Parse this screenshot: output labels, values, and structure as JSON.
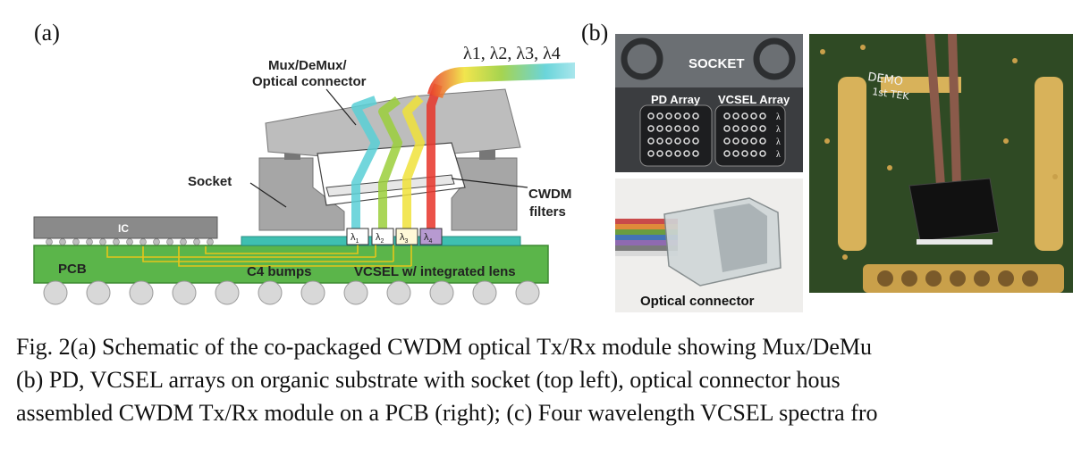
{
  "panels": {
    "a": {
      "label": "(a)",
      "texts": {
        "mux": "Mux/DeMux/",
        "optical_connector": "Optical connector",
        "wavelengths": "λ1, λ2, λ3, λ4",
        "socket": "Socket",
        "cwdm_1": "CWDM",
        "cwdm_2": "filters",
        "ic": "IC",
        "pcb": "PCB",
        "c4": "C4 bumps",
        "vcsel": "VCSEL w/ integrated lens",
        "lambda_sym": "λ",
        "sub1": "1",
        "sub2": "2",
        "sub3": "3",
        "sub4": "4"
      }
    },
    "b": {
      "label": "(b)",
      "socket_photo": {
        "title": "SOCKET",
        "pd_array": "PD Array",
        "vcsel_array": "VCSEL Array"
      },
      "connector_photo": {
        "label": "Optical connector"
      },
      "pcb_photo": {
        "handwriting_1": "DEMO",
        "handwriting_2": "1st TEK"
      }
    }
  },
  "caption": {
    "line1": "Fig. 2(a) Schematic of the co-packaged CWDM optical Tx/Rx module showing Mux/DeMu",
    "line2": "(b) PD, VCSEL arrays on organic substrate with socket (top left), optical connector hous",
    "line3": "assembled CWDM Tx/Rx module on a PCB (right); (c) Four wavelength VCSEL spectra fro"
  },
  "colors": {
    "pcb_green": "#5bb54a",
    "socket_gray": "#a6a6a6",
    "connector_gray": "#bdbdbd",
    "beam_cyan": "#5ad0d6",
    "beam_green": "#9ccf3c",
    "beam_yellow": "#f0e23a",
    "beam_red": "#e8352a"
  }
}
